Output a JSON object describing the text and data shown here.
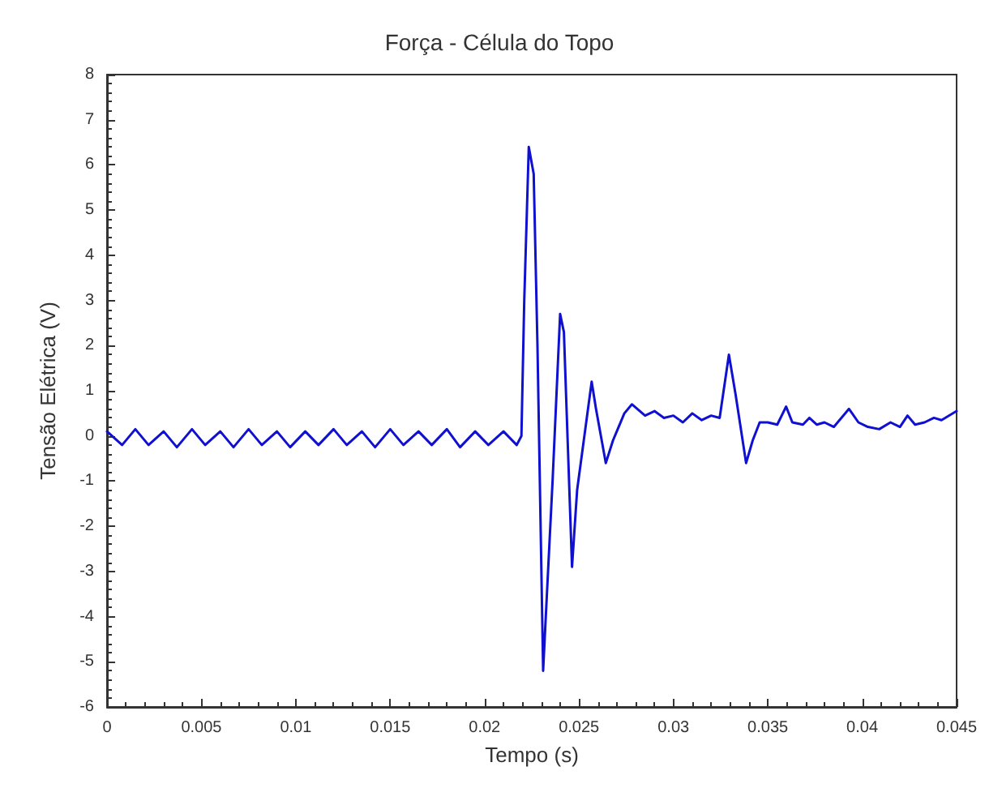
{
  "chart_data": {
    "type": "line",
    "title": "Força - Célula do Topo",
    "xlabel": "Tempo (s)",
    "ylabel": "Tensão Elétrica (V)",
    "xlim": [
      0,
      0.045
    ],
    "ylim": [
      -6,
      8
    ],
    "xticks": [
      0,
      0.005,
      0.01,
      0.015,
      0.02,
      0.025,
      0.03,
      0.035,
      0.04,
      0.045
    ],
    "yticks": [
      -6,
      -5,
      -4,
      -3,
      -2,
      -1,
      0,
      1,
      2,
      3,
      4,
      5,
      6,
      7,
      8
    ],
    "grid": false,
    "marker": "none",
    "line_style": "solid",
    "series": [
      {
        "color": "#1010d0",
        "x": [
          0,
          0.0008,
          0.0015,
          0.0022,
          0.003,
          0.0037,
          0.0045,
          0.0052,
          0.006,
          0.0067,
          0.0075,
          0.0082,
          0.009,
          0.0097,
          0.0105,
          0.0112,
          0.012,
          0.0127,
          0.0135,
          0.0142,
          0.015,
          0.0157,
          0.0165,
          0.0172,
          0.018,
          0.0187,
          0.0195,
          0.0202,
          0.021,
          0.0217,
          0.02195,
          0.0221,
          0.02234,
          0.0226,
          0.0228,
          0.0231,
          0.0233,
          0.0236,
          0.024,
          0.0242,
          0.02463,
          0.0249,
          0.02567,
          0.0259,
          0.02642,
          0.0268,
          0.0274,
          0.0278,
          0.0285,
          0.029,
          0.0295,
          0.03,
          0.0305,
          0.031,
          0.0315,
          0.032,
          0.03245,
          0.03294,
          0.0333,
          0.03385,
          0.0342,
          0.03457,
          0.035,
          0.0355,
          0.03597,
          0.0363,
          0.03686,
          0.0372,
          0.0376,
          0.038,
          0.0385,
          0.0393,
          0.0398,
          0.0403,
          0.0409,
          0.0415,
          0.042,
          0.0424,
          0.0428,
          0.0433,
          0.0438,
          0.0442,
          0.045
        ],
        "values": [
          0.1,
          -0.2,
          0.15,
          -0.2,
          0.1,
          -0.25,
          0.15,
          -0.2,
          0.1,
          -0.25,
          0.15,
          -0.2,
          0.1,
          -0.25,
          0.1,
          -0.2,
          0.15,
          -0.2,
          0.1,
          -0.25,
          0.15,
          -0.2,
          0.1,
          -0.2,
          0.15,
          -0.25,
          0.1,
          -0.2,
          0.1,
          -0.2,
          0.0,
          3.0,
          6.4,
          5.8,
          2.0,
          -5.2,
          -3.5,
          -1.0,
          2.7,
          2.3,
          -2.9,
          -1.2,
          1.2,
          0.6,
          -0.6,
          -0.1,
          0.5,
          0.7,
          0.45,
          0.55,
          0.4,
          0.45,
          0.3,
          0.5,
          0.35,
          0.45,
          0.4,
          1.8,
          0.9,
          -0.6,
          -0.1,
          0.3,
          0.3,
          0.25,
          0.65,
          0.3,
          0.25,
          0.4,
          0.25,
          0.3,
          0.2,
          0.6,
          0.3,
          0.2,
          0.15,
          0.3,
          0.2,
          0.45,
          0.25,
          0.3,
          0.4,
          0.35,
          0.55
        ]
      }
    ]
  }
}
